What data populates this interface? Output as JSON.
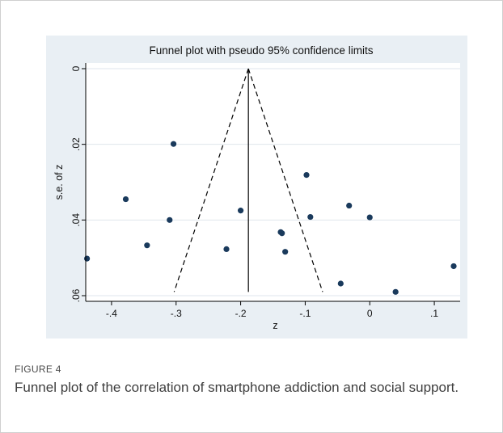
{
  "figure": {
    "label": "FIGURE 4",
    "caption": "Funnel plot of the correlation of smartphone addiction and social support."
  },
  "chart_data": {
    "type": "scatter",
    "title": "Funnel plot with pseudo 95% confidence limits",
    "xlabel": "z",
    "ylabel": "s.e. of z",
    "xlim": [
      -0.44,
      0.14
    ],
    "ylim": [
      0,
      0.06
    ],
    "y_inverted": true,
    "x_ticks": [
      "-.4",
      "-.3",
      "-.2",
      "-.1",
      "0",
      ".1"
    ],
    "x_tick_values": [
      -0.4,
      -0.3,
      -0.2,
      -0.1,
      0,
      0.1
    ],
    "y_ticks": [
      "0",
      ".02",
      ".04",
      ".06"
    ],
    "y_tick_values": [
      0,
      0.02,
      0.04,
      0.06
    ],
    "grid": "horizontal",
    "colors": {
      "panel_bg": "#e9eff4",
      "plot_bg": "#ffffff",
      "marker": "#1a3a5c",
      "line": "#000000",
      "grid": "#dfe6ec"
    },
    "points": [
      {
        "x": -0.438,
        "y": 0.0502
      },
      {
        "x": -0.378,
        "y": 0.0345
      },
      {
        "x": -0.345,
        "y": 0.0467
      },
      {
        "x": -0.31,
        "y": 0.04
      },
      {
        "x": -0.304,
        "y": 0.0199
      },
      {
        "x": -0.222,
        "y": 0.0477
      },
      {
        "x": -0.2,
        "y": 0.0375
      },
      {
        "x": -0.138,
        "y": 0.0432
      },
      {
        "x": -0.136,
        "y": 0.0435
      },
      {
        "x": -0.131,
        "y": 0.0484
      },
      {
        "x": -0.098,
        "y": 0.0281
      },
      {
        "x": -0.092,
        "y": 0.0392
      },
      {
        "x": -0.032,
        "y": 0.0362
      },
      {
        "x": 0.0,
        "y": 0.0393
      },
      {
        "x": -0.045,
        "y": 0.0568
      },
      {
        "x": 0.04,
        "y": 0.059
      },
      {
        "x": 0.13,
        "y": 0.0522
      }
    ],
    "pooled_estimate": -0.188,
    "funnel_left": [
      [
        -0.188,
        0
      ],
      [
        -0.303,
        0.059
      ]
    ],
    "funnel_right": [
      [
        -0.188,
        0
      ],
      [
        -0.073,
        0.059
      ]
    ],
    "center_line": [
      [
        -0.188,
        0
      ],
      [
        -0.188,
        0.059
      ]
    ]
  }
}
